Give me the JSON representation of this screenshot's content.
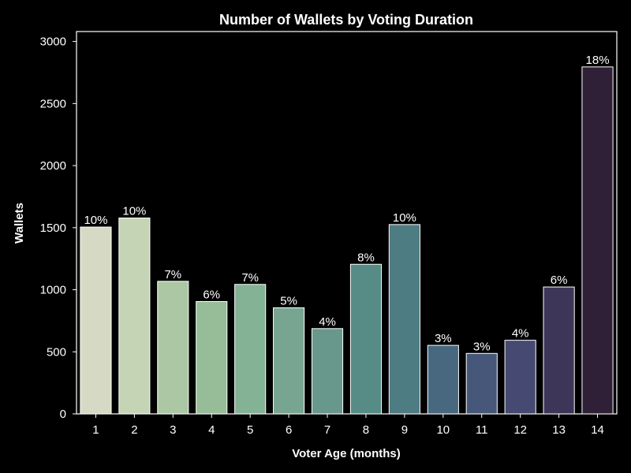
{
  "chart_data": {
    "type": "bar",
    "title": "Number of Wallets by Voting Duration",
    "xlabel": "Voter Age (months)",
    "ylabel": "Wallets",
    "categories": [
      "1",
      "2",
      "3",
      "4",
      "5",
      "6",
      "7",
      "8",
      "9",
      "10",
      "11",
      "12",
      "13",
      "14"
    ],
    "values": [
      1505,
      1578,
      1068,
      905,
      1043,
      855,
      687,
      1205,
      1525,
      552,
      487,
      593,
      1022,
      2795
    ],
    "data_labels": [
      "10%",
      "10%",
      "7%",
      "6%",
      "7%",
      "5%",
      "4%",
      "8%",
      "10%",
      "3%",
      "3%",
      "4%",
      "6%",
      "18%"
    ],
    "yticks": [
      0,
      500,
      1000,
      1500,
      2000,
      2500,
      3000
    ],
    "ylim": [
      0,
      3080
    ],
    "grid": false,
    "legend": "none",
    "colors": [
      "#d6dac4",
      "#c4d4b5",
      "#acc7a3",
      "#97bd98",
      "#84b295",
      "#77a591",
      "#68978c",
      "#578b85",
      "#4e7c83",
      "#486880",
      "#475779",
      "#464a72",
      "#3e3658",
      "#2f2037"
    ]
  }
}
